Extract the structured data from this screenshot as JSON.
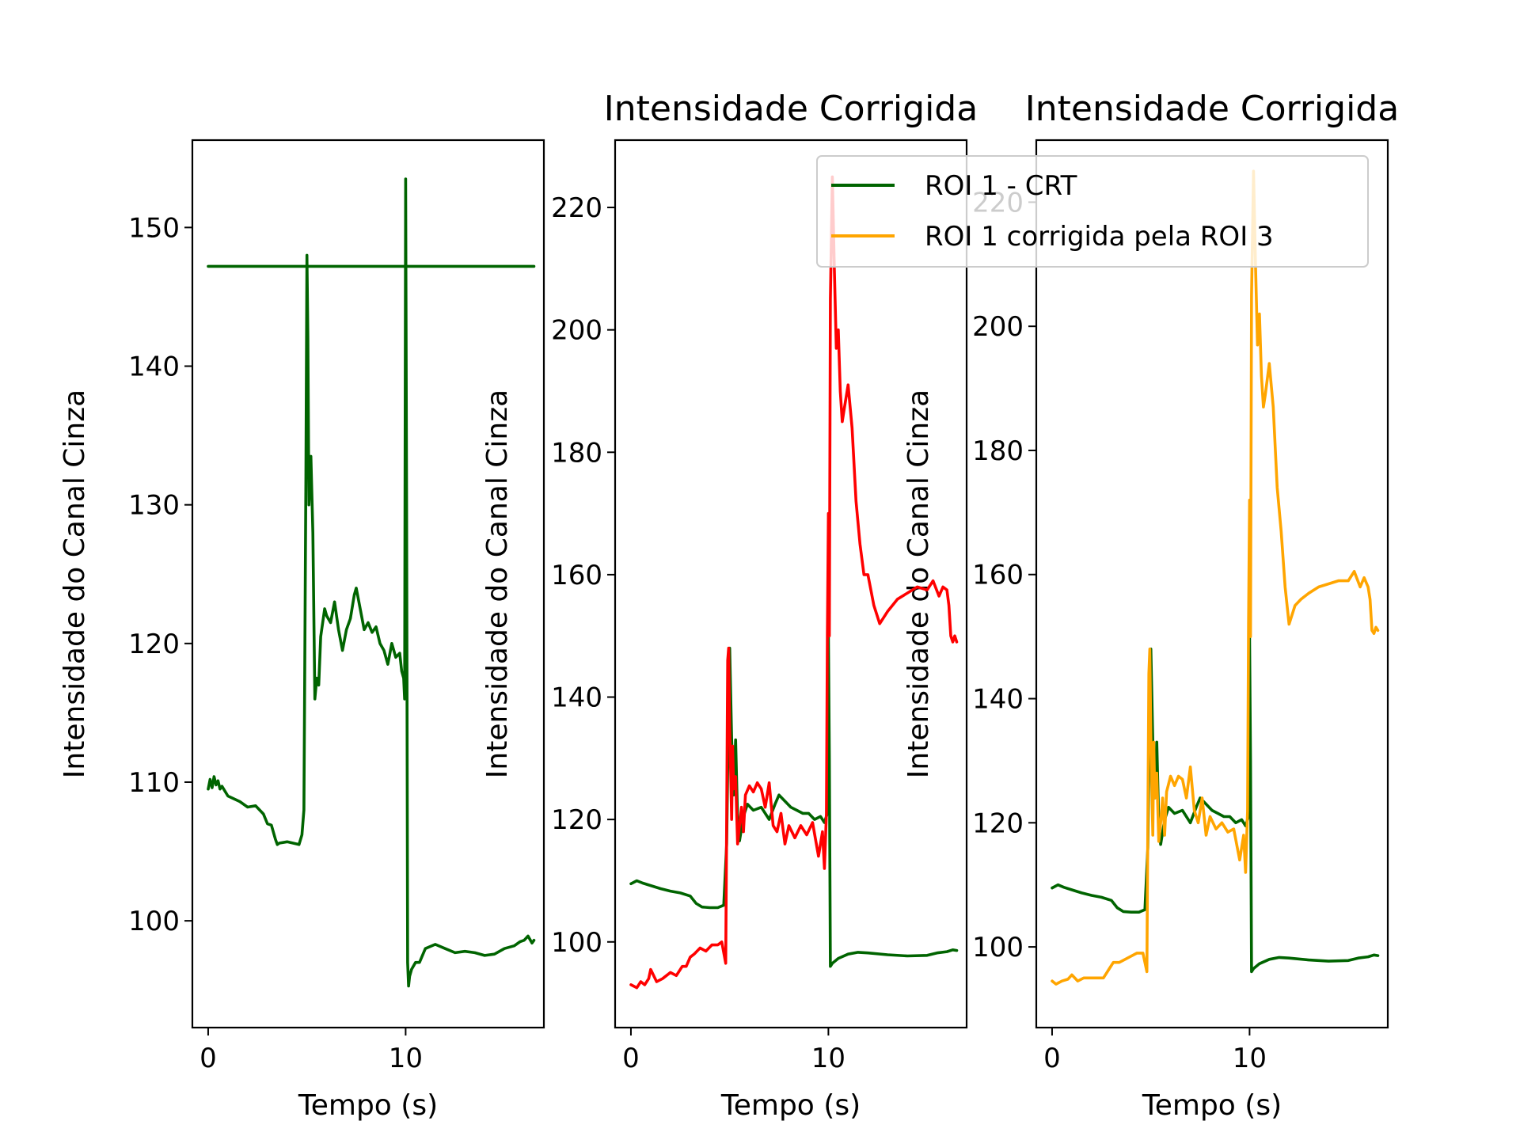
{
  "colors": {
    "roi1_crt": "#006400",
    "red_series": "#ff0000",
    "roi1_corrected": "#ffa500"
  },
  "legend": {
    "placement": "top-right",
    "entries": [
      {
        "label": "ROI 1 - CRT",
        "color": "#006400"
      },
      {
        "label": "ROI 1 corrigida pela ROI 3",
        "color": "#ffa500"
      }
    ]
  },
  "chart_data": [
    {
      "type": "line",
      "title": "",
      "xlabel": "Tempo (s)",
      "ylabel": "Intensidade do Canal Cinza",
      "xlim": [
        -0.8,
        17
      ],
      "ylim": [
        92.3,
        156.3
      ],
      "xticks": [
        0,
        10
      ],
      "yticks": [
        100,
        110,
        120,
        130,
        140,
        150
      ],
      "grid": false,
      "series": [
        {
          "name": "",
          "color": "#006400",
          "x": [
            0,
            0.1,
            0.2,
            0.3,
            0.4,
            0.5,
            0.6,
            0.7,
            1.0,
            1.3,
            1.6,
            2.0,
            2.4,
            2.8,
            3.0,
            3.2,
            3.4,
            3.5,
            3.6,
            4.0,
            4.3,
            4.6,
            4.75,
            4.85,
            4.95,
            5.0,
            5.05,
            5.1,
            5.2,
            5.3,
            5.4,
            5.5,
            5.6,
            5.7,
            5.9,
            6.0,
            6.2,
            6.4,
            6.6,
            6.8,
            7.0,
            7.2,
            7.4,
            7.5,
            7.7,
            7.9,
            8.1,
            8.3,
            8.5,
            8.7,
            8.9,
            9.1,
            9.3,
            9.5,
            9.7,
            9.8,
            9.9,
            9.95,
            10.0,
            10.05,
            10.1,
            10.15,
            10.2,
            10.3,
            10.5,
            10.7,
            11.0,
            11.5,
            12.0,
            12.5,
            13.0,
            13.5,
            14.0,
            14.5,
            15.0,
            15.5,
            15.8,
            16.0,
            16.2,
            16.4,
            16.5
          ],
          "y": [
            109.5,
            110.2,
            109.6,
            110.4,
            109.8,
            110.1,
            109.5,
            109.7,
            109.0,
            108.8,
            108.6,
            108.2,
            108.3,
            107.7,
            107.0,
            106.9,
            105.9,
            105.5,
            105.6,
            105.7,
            105.6,
            105.5,
            106.2,
            108.0,
            132.0,
            148.0,
            142.0,
            130.0,
            133.5,
            128.0,
            116.0,
            117.5,
            117.0,
            120.5,
            122.5,
            122.0,
            121.5,
            123.0,
            121.0,
            119.5,
            121.0,
            121.8,
            123.5,
            124.0,
            122.5,
            121.0,
            121.5,
            120.8,
            121.2,
            120.0,
            119.5,
            118.5,
            120.0,
            119.0,
            119.3,
            118.0,
            117.5,
            116.0,
            153.5,
            130.0,
            97.0,
            95.3,
            96.0,
            96.5,
            97.0,
            97.0,
            98.0,
            98.3,
            98.0,
            97.7,
            97.8,
            97.7,
            97.5,
            97.6,
            98.0,
            98.2,
            98.5,
            98.6,
            98.9,
            98.4,
            98.6
          ]
        },
        {
          "name": "",
          "color": "#006400",
          "x": [
            0,
            16.5
          ],
          "y": [
            147.2,
            147.2
          ]
        }
      ]
    },
    {
      "type": "line",
      "title": "Intensidade Corrigida",
      "xlabel": "Tempo (s)",
      "ylabel": "Intensidade do Canal Cinza",
      "xlim": [
        -0.8,
        17
      ],
      "ylim": [
        86,
        231
      ],
      "xticks": [
        0,
        10
      ],
      "yticks": [
        100,
        120,
        140,
        160,
        180,
        200,
        220
      ],
      "grid": false,
      "series": [
        {
          "name": "ROI 1 - CRT",
          "color": "#006400",
          "x": [
            0,
            0.3,
            0.6,
            1.0,
            1.5,
            2.0,
            2.5,
            3.0,
            3.3,
            3.6,
            4.0,
            4.4,
            4.7,
            4.85,
            4.95,
            5.0,
            5.1,
            5.2,
            5.3,
            5.4,
            5.5,
            5.7,
            5.9,
            6.2,
            6.6,
            7.0,
            7.3,
            7.5,
            7.8,
            8.1,
            8.4,
            8.7,
            9.0,
            9.3,
            9.6,
            9.8,
            9.95,
            10.0,
            10.05,
            10.1,
            10.2,
            10.5,
            11.0,
            11.5,
            12.0,
            13.0,
            14.0,
            15.0,
            15.5,
            16.0,
            16.3,
            16.5
          ],
          "y": [
            109.5,
            110.0,
            109.6,
            109.2,
            108.7,
            108.3,
            108.0,
            107.5,
            106.3,
            105.7,
            105.6,
            105.6,
            106.0,
            116.0,
            140.0,
            148.0,
            133.0,
            124.0,
            133.0,
            120.0,
            116.5,
            120.5,
            122.5,
            121.5,
            122.0,
            120.0,
            122.5,
            124.0,
            123.0,
            122.0,
            121.5,
            121.0,
            121.0,
            120.0,
            120.5,
            119.5,
            121.0,
            150.0,
            130.0,
            96.0,
            96.5,
            97.3,
            98.0,
            98.3,
            98.2,
            97.9,
            97.7,
            97.8,
            98.2,
            98.4,
            98.7,
            98.6
          ]
        },
        {
          "name": "",
          "color": "#ff0000",
          "x": [
            0,
            0.3,
            0.5,
            0.7,
            0.9,
            1.0,
            1.3,
            1.6,
            2.0,
            2.3,
            2.6,
            2.8,
            3.0,
            3.2,
            3.5,
            3.8,
            4.1,
            4.4,
            4.6,
            4.8,
            4.85,
            4.9,
            4.95,
            5.0,
            5.05,
            5.1,
            5.15,
            5.2,
            5.3,
            5.4,
            5.5,
            5.6,
            5.7,
            5.8,
            6.0,
            6.2,
            6.4,
            6.6,
            6.8,
            7.0,
            7.2,
            7.4,
            7.6,
            7.8,
            8.0,
            8.3,
            8.6,
            8.9,
            9.2,
            9.5,
            9.7,
            9.8,
            9.9,
            9.95,
            10.0,
            10.05,
            10.1,
            10.2,
            10.3,
            10.4,
            10.5,
            10.6,
            10.7,
            10.8,
            11.0,
            11.2,
            11.4,
            11.6,
            11.8,
            12.0,
            12.3,
            12.6,
            13.0,
            13.5,
            14.0,
            14.5,
            15.0,
            15.3,
            15.6,
            15.8,
            16.0,
            16.1,
            16.2,
            16.3,
            16.4,
            16.5
          ],
          "y": [
            93.0,
            92.5,
            93.5,
            93.0,
            94.0,
            95.5,
            93.5,
            94.0,
            95.0,
            94.5,
            96.0,
            96.0,
            97.5,
            98.0,
            99.0,
            98.5,
            99.5,
            99.5,
            100.0,
            96.5,
            120.0,
            146.0,
            148.0,
            135.0,
            128.0,
            120.0,
            132.0,
            125.0,
            127.0,
            116.0,
            119.0,
            122.0,
            118.0,
            124.0,
            125.5,
            124.5,
            126.0,
            125.0,
            122.0,
            126.0,
            119.0,
            118.0,
            121.0,
            116.0,
            119.0,
            117.0,
            119.0,
            117.5,
            119.5,
            114.0,
            118.0,
            112.0,
            121.0,
            150.0,
            170.0,
            150.0,
            205.0,
            225.0,
            210.0,
            197.0,
            200.0,
            190.0,
            185.0,
            187.0,
            191.0,
            184.0,
            172.0,
            165.0,
            160.0,
            160.0,
            155.0,
            152.0,
            154.0,
            156.0,
            157.0,
            158.0,
            157.5,
            159.0,
            156.5,
            158.0,
            157.5,
            155.0,
            150.0,
            149.0,
            150.0,
            149.0
          ]
        }
      ]
    },
    {
      "type": "line",
      "title": "Intensidade Corrigida",
      "xlabel": "Tempo (s)",
      "ylabel": "Intensidade do Canal Cinza",
      "xlim": [
        -0.8,
        17
      ],
      "ylim": [
        87,
        230
      ],
      "xticks": [
        0,
        10
      ],
      "yticks": [
        100,
        120,
        140,
        160,
        180,
        200,
        220
      ],
      "grid": false,
      "series": [
        {
          "name": "",
          "color": "#006400",
          "x": [
            0,
            0.3,
            0.6,
            1.0,
            1.5,
            2.0,
            2.5,
            3.0,
            3.3,
            3.6,
            4.0,
            4.4,
            4.7,
            4.85,
            4.95,
            5.0,
            5.1,
            5.2,
            5.3,
            5.4,
            5.5,
            5.7,
            5.9,
            6.2,
            6.6,
            7.0,
            7.3,
            7.5,
            7.8,
            8.1,
            8.4,
            8.7,
            9.0,
            9.3,
            9.6,
            9.8,
            9.95,
            10.0,
            10.05,
            10.1,
            10.2,
            10.5,
            11.0,
            11.5,
            12.0,
            13.0,
            14.0,
            15.0,
            15.5,
            16.0,
            16.3,
            16.5
          ],
          "y": [
            109.5,
            110.0,
            109.6,
            109.2,
            108.7,
            108.3,
            108.0,
            107.5,
            106.3,
            105.7,
            105.6,
            105.6,
            106.0,
            116.0,
            140.0,
            148.0,
            133.0,
            124.0,
            133.0,
            120.0,
            116.5,
            120.5,
            122.5,
            121.5,
            122.0,
            120.0,
            122.5,
            124.0,
            123.0,
            122.0,
            121.5,
            121.0,
            121.0,
            120.0,
            120.5,
            119.5,
            121.0,
            150.0,
            130.0,
            96.0,
            96.5,
            97.3,
            98.0,
            98.3,
            98.2,
            97.9,
            97.7,
            97.8,
            98.2,
            98.4,
            98.7,
            98.6
          ]
        },
        {
          "name": "",
          "color": "#ffa500",
          "x": [
            0,
            0.2,
            0.5,
            0.8,
            1.0,
            1.3,
            1.6,
            1.9,
            2.2,
            2.6,
            2.9,
            3.1,
            3.4,
            3.7,
            4.0,
            4.3,
            4.6,
            4.8,
            4.85,
            4.9,
            4.95,
            5.0,
            5.05,
            5.1,
            5.15,
            5.2,
            5.3,
            5.4,
            5.5,
            5.6,
            5.7,
            5.8,
            6.0,
            6.2,
            6.4,
            6.6,
            6.8,
            7.0,
            7.2,
            7.4,
            7.6,
            7.8,
            8.0,
            8.3,
            8.6,
            8.9,
            9.2,
            9.5,
            9.7,
            9.8,
            9.9,
            9.95,
            10.0,
            10.05,
            10.1,
            10.2,
            10.3,
            10.4,
            10.5,
            10.6,
            10.7,
            10.8,
            11.0,
            11.2,
            11.4,
            11.6,
            11.8,
            12.0,
            12.3,
            12.6,
            13.0,
            13.5,
            14.0,
            14.5,
            15.0,
            15.3,
            15.6,
            15.8,
            16.0,
            16.1,
            16.2,
            16.3,
            16.4,
            16.5
          ],
          "y": [
            94.5,
            94.0,
            94.5,
            94.8,
            95.5,
            94.5,
            95.0,
            95.0,
            95.0,
            95.0,
            96.5,
            97.5,
            97.5,
            98.0,
            98.5,
            99.0,
            99.0,
            96.0,
            120.0,
            144.0,
            148.0,
            134.0,
            126.0,
            118.0,
            133.0,
            124.0,
            128.0,
            117.0,
            120.0,
            124.0,
            118.0,
            125.0,
            127.5,
            126.0,
            127.5,
            127.0,
            124.0,
            129.0,
            122.0,
            120.0,
            124.0,
            118.0,
            121.0,
            119.0,
            120.0,
            118.5,
            119.0,
            114.0,
            118.0,
            112.0,
            122.0,
            152.0,
            172.0,
            150.0,
            205.0,
            225.0,
            210.0,
            197.0,
            202.0,
            192.0,
            187.0,
            189.0,
            194.0,
            187.0,
            174.0,
            167.0,
            158.0,
            152.0,
            155.0,
            156.0,
            157.0,
            158.0,
            158.5,
            159.0,
            159.0,
            160.5,
            158.0,
            159.5,
            158.0,
            156.0,
            151.0,
            150.5,
            151.5,
            151.0
          ]
        }
      ]
    }
  ]
}
